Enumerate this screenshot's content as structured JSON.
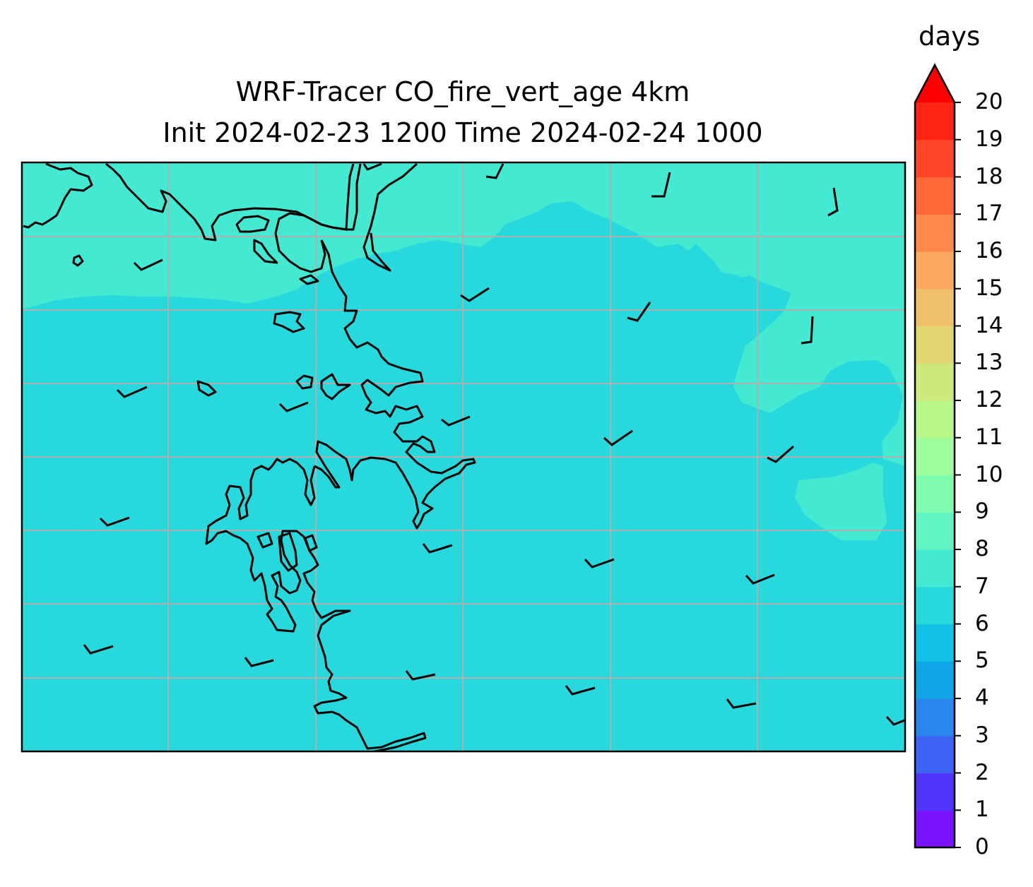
{
  "title_line1": "WRF-Tracer CO_fire_vert_age 4km",
  "title_line2": "Init 2024-02-23 1200 Time 2024-02-24 1000",
  "colorbar": {
    "unit": "days",
    "levels": [
      "0",
      "1",
      "2",
      "3",
      "4",
      "5",
      "6",
      "7",
      "8",
      "9",
      "10",
      "11",
      "12",
      "13",
      "14",
      "15",
      "16",
      "17",
      "18",
      "19",
      "20"
    ],
    "colors": [
      "#7a14ff",
      "#5036fb",
      "#3d63f5",
      "#2886ee",
      "#0ea6e6",
      "#12c1e6",
      "#27d8dc",
      "#44e9d2",
      "#62f5c2",
      "#80fcae",
      "#9efd9b",
      "#b8f68a",
      "#cfe87c",
      "#e2d671",
      "#f0c06a",
      "#fca85f",
      "#ff8a4c",
      "#ff6839",
      "#ff4628",
      "#ff2314"
    ],
    "extend_color": "#ff0000"
  },
  "map": {
    "background_color": "#27d9dc",
    "upper_region_color": "#44e9d2",
    "coastline_color": "#000000",
    "grid_color": "#b0b0b0"
  }
}
